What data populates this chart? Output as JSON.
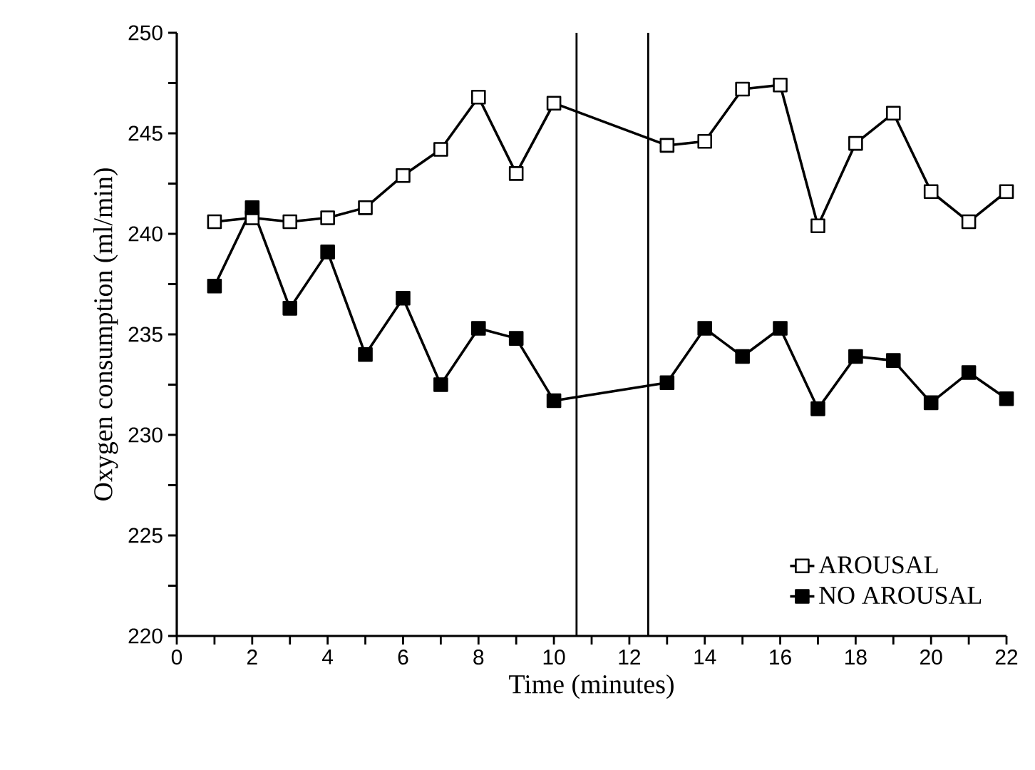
{
  "chart_data": {
    "type": "line",
    "xlabel": "Time (minutes)",
    "ylabel": "Oxygen consumption (ml/min)",
    "series": [
      {
        "name": "AROUSAL",
        "color": "#000000",
        "x": [
          1,
          2,
          3,
          4,
          5,
          6,
          7,
          8,
          9,
          10,
          13,
          14,
          15,
          16,
          17,
          18,
          19,
          20,
          21,
          22
        ],
        "values": [
          240.6,
          240.8,
          240.6,
          240.8,
          241.3,
          242.9,
          244.2,
          246.8,
          243.0,
          246.5,
          244.4,
          244.6,
          247.2,
          247.4,
          240.4,
          244.5,
          246.0,
          242.1,
          240.6,
          242.1
        ]
      },
      {
        "name": "NO AROUSAL",
        "color": "#000000",
        "x": [
          1,
          2,
          3,
          4,
          5,
          6,
          7,
          8,
          9,
          10,
          13,
          14,
          15,
          16,
          17,
          18,
          19,
          20,
          21,
          22
        ],
        "values": [
          237.4,
          241.3,
          236.3,
          239.1,
          234.0,
          236.8,
          232.5,
          235.3,
          234.8,
          231.7,
          232.6,
          235.3,
          233.9,
          235.3,
          231.3,
          233.9,
          233.7,
          231.6,
          233.1,
          231.8
        ]
      }
    ],
    "xlim": [
      0,
      22
    ],
    "ylim": [
      220,
      250
    ],
    "xticks": [
      0,
      {
        "value": 1,
        "label": null
      },
      2,
      {
        "value": 3,
        "label": null
      },
      4,
      {
        "value": 5,
        "label": null
      },
      6,
      {
        "value": 7,
        "label": null
      },
      8,
      {
        "value": 9,
        "label": null
      },
      10,
      {
        "value": 11,
        "label": null
      },
      12,
      {
        "value": 13,
        "label": null
      },
      14,
      {
        "value": 15,
        "label": null
      },
      16,
      {
        "value": 17,
        "label": null
      },
      18,
      {
        "value": 19,
        "label": null
      },
      20,
      {
        "value": 21,
        "label": null
      },
      22
    ],
    "yticks": [
      220,
      {
        "value": 222.5,
        "label": null
      },
      225,
      {
        "value": 227.5,
        "label": null
      },
      230,
      {
        "value": 232.5,
        "label": null
      },
      235,
      {
        "value": 237.5,
        "label": null
      },
      240,
      {
        "value": 242.5,
        "label": null
      },
      245,
      {
        "value": 247.5,
        "label": null
      },
      250
    ],
    "ref_lines": [
      {
        "axis": "x",
        "value": 10.6,
        "color": "#000000"
      },
      {
        "axis": "x",
        "value": 12.5,
        "color": "#000000"
      }
    ],
    "marker": "square",
    "line_style": "solid",
    "legend": "bottom right",
    "grid": false
  }
}
